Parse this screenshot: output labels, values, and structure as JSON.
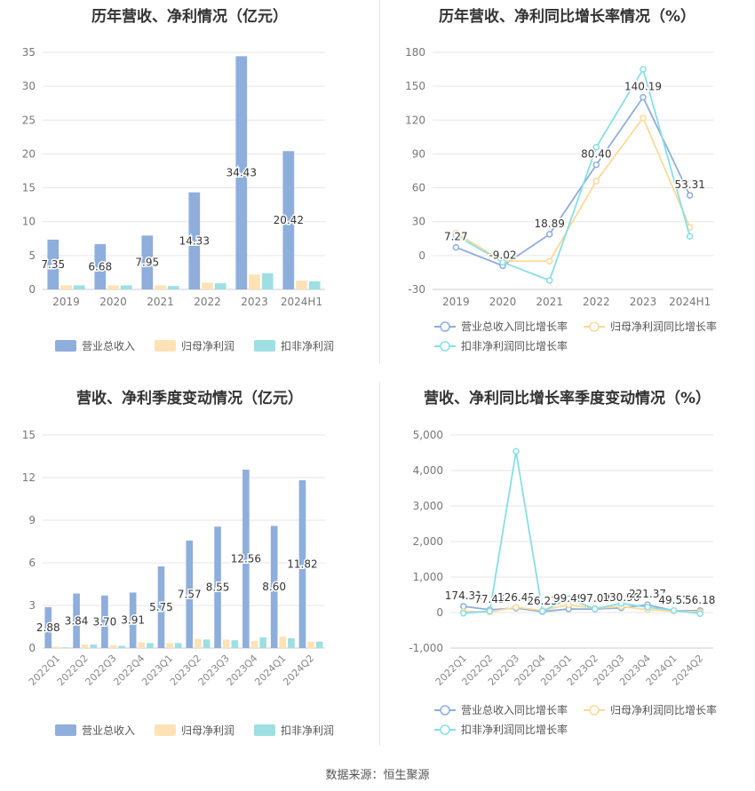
{
  "source": "数据来源：恒生聚源",
  "charts": [
    {
      "title": "历年营收、净利情况（亿元）",
      "chart_data": {
        "type": "bar",
        "categories": [
          "2019",
          "2020",
          "2021",
          "2022",
          "2023",
          "2024H1"
        ],
        "series": [
          {
            "name": "营业总收入",
            "color": "#8eaedc",
            "values": [
              7.35,
              6.68,
              7.95,
              14.33,
              34.43,
              20.42
            ],
            "show_labels": true
          },
          {
            "name": "归母净利润",
            "color": "#fde2b5",
            "values": [
              0.6,
              0.6,
              0.6,
              1.0,
              2.2,
              1.3
            ],
            "show_labels": false
          },
          {
            "name": "扣非净利润",
            "color": "#9ddfe3",
            "values": [
              0.6,
              0.6,
              0.5,
              0.9,
              2.4,
              1.2
            ],
            "show_labels": false
          }
        ],
        "yticks": [
          "0",
          "5",
          "10",
          "15",
          "20",
          "25",
          "30",
          "35"
        ],
        "ylim": [
          0,
          35
        ],
        "xlabel_rotate": false
      }
    },
    {
      "title": "历年营收、净利同比增长率情况（%）",
      "chart_data": {
        "type": "line",
        "categories": [
          "2019",
          "2020",
          "2021",
          "2022",
          "2023",
          "2024H1"
        ],
        "series": [
          {
            "name": "营业总收入同比增长率",
            "color": "#8eaedc",
            "values": [
              7.27,
              -9.02,
              18.89,
              80.4,
              140.19,
              53.31
            ],
            "show_labels": true,
            "labels": [
              "7.27",
              "-9.02",
              "18.89",
              "80.40",
              "140.19",
              "53.31"
            ]
          },
          {
            "name": "归母净利润同比增长率",
            "color": "#fbd99a",
            "values": [
              20,
              -5,
              -5,
              66,
              122,
              25
            ],
            "show_labels": false
          },
          {
            "name": "扣非净利润同比增长率",
            "color": "#89dde4",
            "values": [
              18,
              -6,
              -22,
              96,
              165,
              17
            ],
            "show_labels": false
          }
        ],
        "yticks": [
          "-30",
          "0",
          "30",
          "60",
          "90",
          "120",
          "150",
          "180"
        ],
        "ylim": [
          -30,
          180
        ],
        "xlabel_rotate": false
      }
    },
    {
      "title": "营收、净利季度变动情况（亿元）",
      "chart_data": {
        "type": "bar",
        "categories": [
          "2022Q1",
          "2022Q2",
          "2022Q3",
          "2022Q4",
          "2023Q1",
          "2023Q2",
          "2023Q3",
          "2023Q4",
          "2024Q1",
          "2024Q2"
        ],
        "series": [
          {
            "name": "营业总收入",
            "color": "#8eaedc",
            "values": [
              2.88,
              3.84,
              3.7,
              3.91,
              5.75,
              7.57,
              8.55,
              12.56,
              8.6,
              11.82
            ],
            "show_labels": true
          },
          {
            "name": "归母净利润",
            "color": "#fde2b5",
            "values": [
              0.1,
              0.25,
              0.2,
              0.4,
              0.35,
              0.65,
              0.6,
              0.5,
              0.8,
              0.45
            ],
            "show_labels": false
          },
          {
            "name": "扣非净利润",
            "color": "#9ddfe3",
            "values": [
              0.05,
              0.25,
              0.15,
              0.35,
              0.35,
              0.6,
              0.55,
              0.75,
              0.7,
              0.45
            ],
            "show_labels": false
          }
        ],
        "yticks": [
          "0",
          "3",
          "6",
          "9",
          "12",
          "15"
        ],
        "ylim": [
          0,
          15
        ],
        "xlabel_rotate": true
      }
    },
    {
      "title": "营收、净利同比增长率季度变动情况（%）",
      "chart_data": {
        "type": "line",
        "categories": [
          "2022Q1",
          "2022Q2",
          "2022Q3",
          "2022Q4",
          "2023Q1",
          "2023Q2",
          "2023Q3",
          "2023Q4",
          "2024Q1",
          "2024Q2"
        ],
        "series": [
          {
            "name": "营业总收入同比增长率",
            "color": "#8eaedc",
            "values": [
              174.31,
              77.45,
              126.45,
              26.23,
              99.49,
              97.09,
              130.96,
              221.37,
              49.52,
              56.18
            ],
            "show_labels": true,
            "labels": [
              "174.31",
              "77.45",
              "126.45",
              "26.23",
              "99.49",
              "97.09",
              "130.96",
              "221.37",
              "49.52",
              "56.18"
            ]
          },
          {
            "name": "归母净利润同比增长率",
            "color": "#fbd99a",
            "values": [
              30,
              20,
              150,
              60,
              220,
              120,
              170,
              80,
              40,
              20
            ],
            "show_labels": false
          },
          {
            "name": "扣非净利润同比增长率",
            "color": "#89dde4",
            "values": [
              -20,
              40,
              4540,
              40,
              390,
              100,
              260,
              150,
              60,
              -30
            ],
            "show_labels": false
          }
        ],
        "yticks": [
          "-1,000",
          "0",
          "1,000",
          "2,000",
          "3,000",
          "4,000",
          "5,000"
        ],
        "ylim": [
          -1000,
          5000
        ],
        "xlabel_rotate": true
      }
    }
  ]
}
